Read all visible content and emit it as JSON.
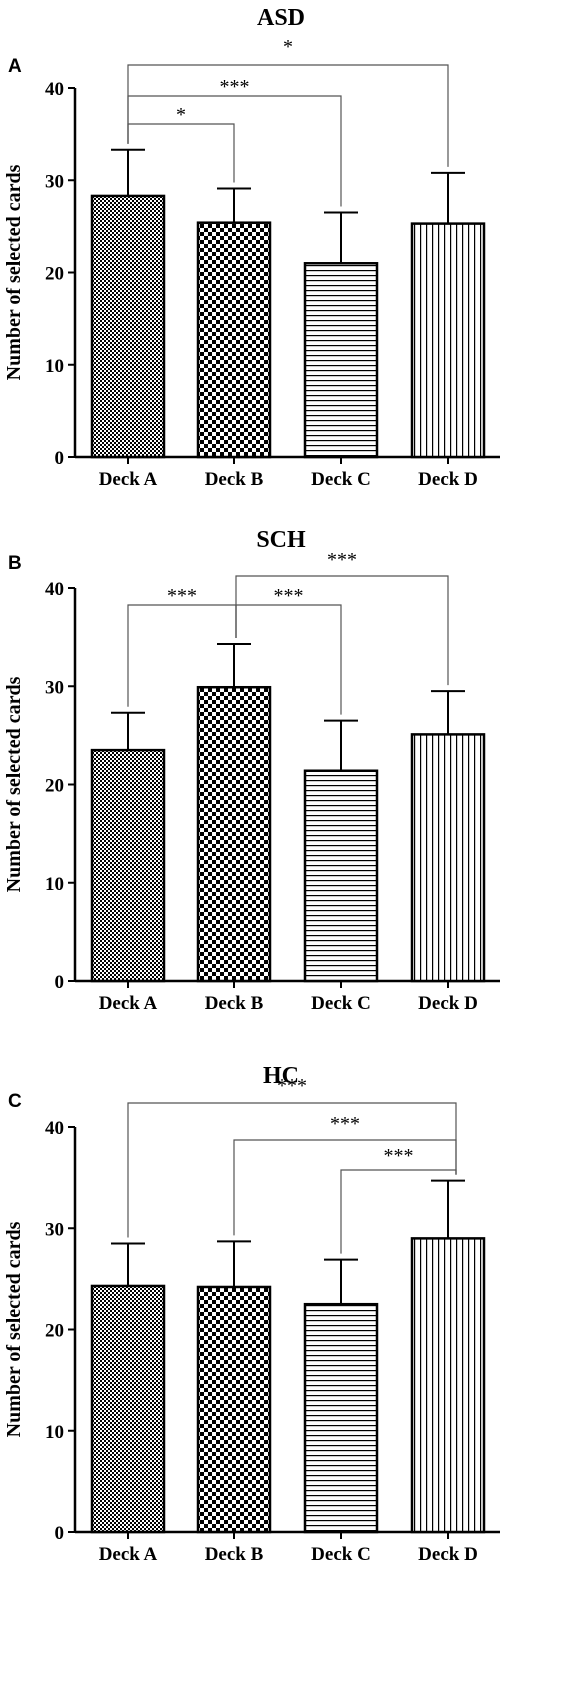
{
  "colors": {
    "bar_stroke": "#000000",
    "bracket": "#555555",
    "background": "#ffffff"
  },
  "chart_data": [
    {
      "type": "bar",
      "panel": "A",
      "title": "ASD",
      "ylabel": "Number of selected cards",
      "xlabel": "",
      "ylim": [
        0,
        40
      ],
      "yticks": [
        "0",
        "10",
        "20",
        "30",
        "40"
      ],
      "categories": [
        "Deck A",
        "Deck B",
        "Deck C",
        "Deck D"
      ],
      "patterns": [
        "fine-checker",
        "coarse-checker",
        "horizontal-lines",
        "vertical-lines"
      ],
      "values": [
        28.3,
        25.4,
        21.0,
        25.3
      ],
      "errors": [
        5.0,
        3.7,
        5.5,
        5.5
      ],
      "grid": false,
      "significance": [
        {
          "from": "Deck A",
          "to": "Deck B",
          "label": "*"
        },
        {
          "from": "Deck A",
          "to": "Deck C",
          "label": "***"
        },
        {
          "from": "Deck A",
          "to": "Deck D",
          "label": "*"
        }
      ]
    },
    {
      "type": "bar",
      "panel": "B",
      "title": "SCH",
      "ylabel": "Number of selected cards",
      "xlabel": "",
      "ylim": [
        0,
        40
      ],
      "yticks": [
        "0",
        "10",
        "20",
        "30",
        "40"
      ],
      "categories": [
        "Deck A",
        "Deck B",
        "Deck C",
        "Deck D"
      ],
      "patterns": [
        "fine-checker",
        "coarse-checker",
        "horizontal-lines",
        "vertical-lines"
      ],
      "values": [
        23.5,
        29.9,
        21.4,
        25.1
      ],
      "errors": [
        3.8,
        4.4,
        5.1,
        4.4
      ],
      "grid": false,
      "significance": [
        {
          "from": "Deck B",
          "to": "Deck A",
          "label": "***"
        },
        {
          "from": "Deck B",
          "to": "Deck C",
          "label": "***"
        },
        {
          "from": "Deck B",
          "to": "Deck D",
          "label": "***"
        }
      ]
    },
    {
      "type": "bar",
      "panel": "C",
      "title": "HC",
      "ylabel": "Number of selected cards",
      "xlabel": "",
      "ylim": [
        0,
        40
      ],
      "yticks": [
        "0",
        "10",
        "20",
        "30",
        "40"
      ],
      "categories": [
        "Deck A",
        "Deck B",
        "Deck C",
        "Deck D"
      ],
      "patterns": [
        "fine-checker",
        "coarse-checker",
        "horizontal-lines",
        "vertical-lines"
      ],
      "values": [
        24.3,
        24.2,
        22.5,
        29.0
      ],
      "errors": [
        4.2,
        4.5,
        4.4,
        5.7
      ],
      "grid": false,
      "significance": [
        {
          "from": "Deck D",
          "to": "Deck A",
          "label": "***"
        },
        {
          "from": "Deck D",
          "to": "Deck B",
          "label": "***"
        },
        {
          "from": "Deck D",
          "to": "Deck C",
          "label": "***"
        }
      ]
    }
  ]
}
